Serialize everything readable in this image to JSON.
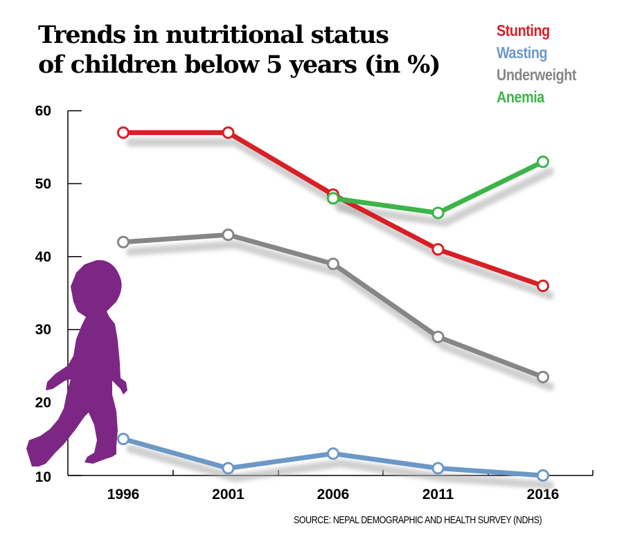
{
  "chart_data": {
    "type": "line",
    "title_lines": [
      "Trends in nutritional status",
      "of children below 5 years (in %)"
    ],
    "categories": [
      "1996",
      "2001",
      "2006",
      "2011",
      "2016"
    ],
    "ylim": [
      10,
      60
    ],
    "yticks": [
      10,
      20,
      30,
      40,
      50,
      60
    ],
    "series": [
      {
        "name": "Stunting",
        "color": "#d71f26",
        "values": [
          57,
          57,
          48.5,
          41,
          36
        ]
      },
      {
        "name": "Wasting",
        "color": "#6c98c6",
        "values": [
          15,
          11,
          13,
          11,
          10
        ]
      },
      {
        "name": "Underweight",
        "color": "#858688",
        "values": [
          42,
          43,
          39,
          29,
          23.5
        ]
      },
      {
        "name": "Anemia",
        "color": "#3db449",
        "values": [
          null,
          null,
          48,
          46,
          53
        ]
      }
    ],
    "source": "SOURCE: NEPAL DEMOGRAPHIC AND HEALTH SURVEY (NDHS)",
    "illustration": "child-silhouette-icon",
    "illustration_color": "#7d2784"
  }
}
